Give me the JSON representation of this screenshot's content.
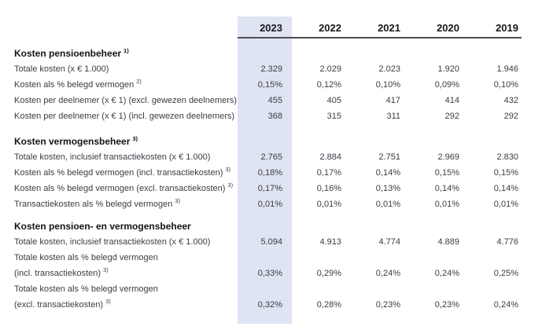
{
  "columns": [
    "2023",
    "2022",
    "2021",
    "2020",
    "2019"
  ],
  "colors": {
    "highlight_2023_column": "#dfe4f3",
    "header_rule": "#4d4e55",
    "body_text": "#3c3c46",
    "heading_text": "#17171c"
  },
  "sections": [
    {
      "title": "Kosten pensioenbeheer",
      "title_sup": "1)",
      "rows": [
        {
          "label": "Totale kosten (x € 1.000)",
          "sup": "",
          "values": [
            "2.329",
            "2.029",
            "2.023",
            "1.920",
            "1.946"
          ]
        },
        {
          "label": "Kosten als % belegd vermogen",
          "sup": "2)",
          "values": [
            "0,15%",
            "0,12%",
            "0,10%",
            "0,09%",
            "0,10%"
          ]
        },
        {
          "label": "Kosten per deelnemer (x € 1) (excl. gewezen deelnemers)",
          "sup": "",
          "values": [
            "455",
            "405",
            "417",
            "414",
            "432"
          ]
        },
        {
          "label": "Kosten per deelnemer (x € 1) (incl. gewezen deelnemers)",
          "sup": "",
          "values": [
            "368",
            "315",
            "311",
            "292",
            "292"
          ]
        }
      ]
    },
    {
      "title": "Kosten vermogensbeheer",
      "title_sup": "3)",
      "rows": [
        {
          "label": "Totale kosten, inclusief transactiekosten (x € 1.000)",
          "sup": "",
          "values": [
            "2.765",
            "2.884",
            "2.751",
            "2.969",
            "2.830"
          ]
        },
        {
          "label": "Kosten als % belegd vermogen (incl. transactiekosten)",
          "sup": "3)",
          "values": [
            "0,18%",
            "0,17%",
            "0,14%",
            "0,15%",
            "0,15%"
          ]
        },
        {
          "label": "Kosten als % belegd vermogen (excl. transactiekosten)",
          "sup": "3)",
          "values": [
            "0,17%",
            "0,16%",
            "0,13%",
            "0,14%",
            "0,14%"
          ]
        },
        {
          "label": "Transactiekosten als % belegd vermogen",
          "sup": "3)",
          "values": [
            "0,01%",
            "0,01%",
            "0,01%",
            "0,01%",
            "0,01%"
          ]
        }
      ]
    },
    {
      "title": "Kosten pensioen- en vermogensbeheer",
      "title_sup": "",
      "rows": [
        {
          "label": "Totale kosten, inclusief transactiekosten (x € 1.000)",
          "sup": "",
          "values": [
            "5.094",
            "4.913",
            "4.774",
            "4.889",
            "4.776"
          ]
        },
        {
          "label": "Totale kosten als % belegd vermogen",
          "label2": "(incl. transactiekosten)",
          "sup": "3)",
          "values": [
            "0,33%",
            "0,29%",
            "0,24%",
            "0,24%",
            "0,25%"
          ]
        },
        {
          "label": "Totale kosten als % belegd vermogen",
          "label2": "(excl. transactiekosten)",
          "sup": "3)",
          "values": [
            "0,32%",
            "0,28%",
            "0,23%",
            "0,23%",
            "0,24%"
          ]
        }
      ]
    }
  ]
}
